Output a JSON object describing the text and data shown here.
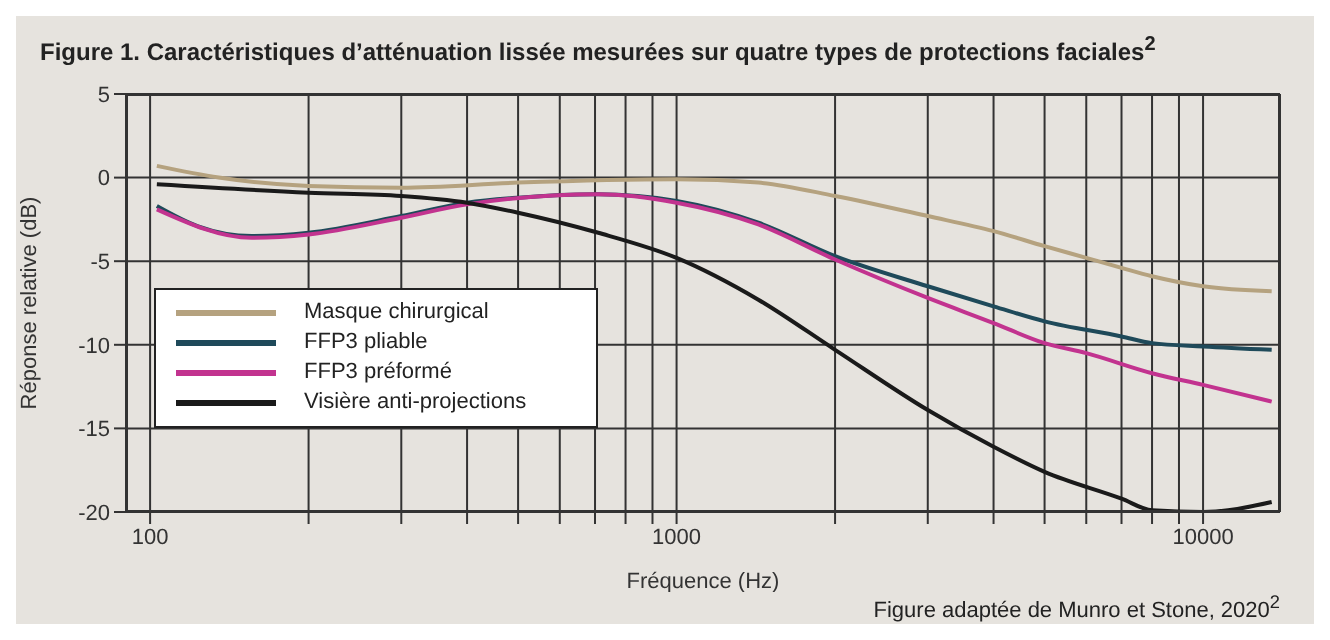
{
  "chart_data": {
    "type": "line",
    "title": "Figure 1. Caractéristiques d’atténuation lissée mesurées sur quatre types de protections faciales$^{2}$",
    "xlabel": "Fréquence (Hz)",
    "ylabel": "Réponse relative (dB)",
    "annotations": [
      "Figure adaptée de Munro et Stone, 2020$^{2}$"
    ],
    "log": "x",
    "grid": true,
    "legend": "bottom left",
    "line_style": "solid",
    "marker": "none",
    "xlim": [
      90,
      14000
    ],
    "ylim": [
      -20,
      5
    ],
    "xticks": [
      100,
      {
        "value": 200,
        "label": null
      },
      {
        "value": 300,
        "label": null
      },
      {
        "value": 400,
        "label": null
      },
      {
        "value": 500,
        "label": null
      },
      {
        "value": 600,
        "label": null
      },
      {
        "value": 700,
        "label": null
      },
      {
        "value": 800,
        "label": null
      },
      {
        "value": 900,
        "label": null
      },
      1000,
      {
        "value": 2000,
        "label": null
      },
      {
        "value": 3000,
        "label": null
      },
      {
        "value": 4000,
        "label": null
      },
      {
        "value": 5000,
        "label": null
      },
      {
        "value": 6000,
        "label": null
      },
      {
        "value": 7000,
        "label": null
      },
      {
        "value": 8000,
        "label": null
      },
      {
        "value": 9000,
        "label": null
      },
      10000
    ],
    "yticks": [
      -20,
      -15,
      -10,
      -5,
      0,
      5
    ],
    "series": [
      {
        "name": "Masque chirurgical",
        "color": "#b5a27f",
        "x": [
          103,
          135,
          200,
          300,
          500,
          1000,
          1430,
          2000,
          3000,
          4000,
          5000,
          6000,
          7000,
          8000,
          10000,
          13500
        ],
        "values": [
          0.7,
          0,
          -0.5,
          -0.6,
          -0.3,
          -0.1,
          -0.3,
          -1.1,
          -2.3,
          -3.2,
          -4.1,
          -4.8,
          -5.4,
          -5.9,
          -6.5,
          -6.8
        ]
      },
      {
        "name": "FFP3 pliable",
        "color": "#1f4a5a",
        "x": [
          103,
          123,
          156,
          200,
          300,
          400,
          500,
          710,
          1000,
          1430,
          2000,
          3000,
          4000,
          5000,
          7000,
          8000,
          10000,
          13500
        ],
        "values": [
          -1.7,
          -2.9,
          -3.5,
          -3.3,
          -2.3,
          -1.5,
          -1.2,
          -1.0,
          -1.4,
          -2.7,
          -4.7,
          -6.5,
          -7.7,
          -8.6,
          -9.5,
          -9.9,
          -10.1,
          -10.3
        ]
      },
      {
        "name": "FFP3 préformé",
        "color": "#c2338f",
        "x": [
          103,
          156,
          200,
          300,
          400,
          710,
          1000,
          1430,
          2000,
          3000,
          4000,
          5000,
          6000,
          8000,
          10000,
          13500
        ],
        "values": [
          -1.9,
          -3.6,
          -3.4,
          -2.4,
          -1.6,
          -1.0,
          -1.5,
          -2.8,
          -4.9,
          -7.2,
          -8.7,
          -9.9,
          -10.5,
          -11.7,
          -12.4,
          -13.4
        ]
      },
      {
        "name": "Visière anti-projections",
        "color": "#1a1a1a",
        "x": [
          103,
          200,
          300,
          400,
          500,
          710,
          1000,
          1430,
          2000,
          3000,
          4000,
          5000,
          7000,
          8000,
          10000,
          13500
        ],
        "values": [
          -0.4,
          -0.9,
          -1.1,
          -1.5,
          -2.1,
          -3.3,
          -4.8,
          -7.3,
          -10.3,
          -13.9,
          -16.1,
          -17.6,
          -19.2,
          -19.9,
          -20,
          -19.4
        ]
      }
    ]
  }
}
